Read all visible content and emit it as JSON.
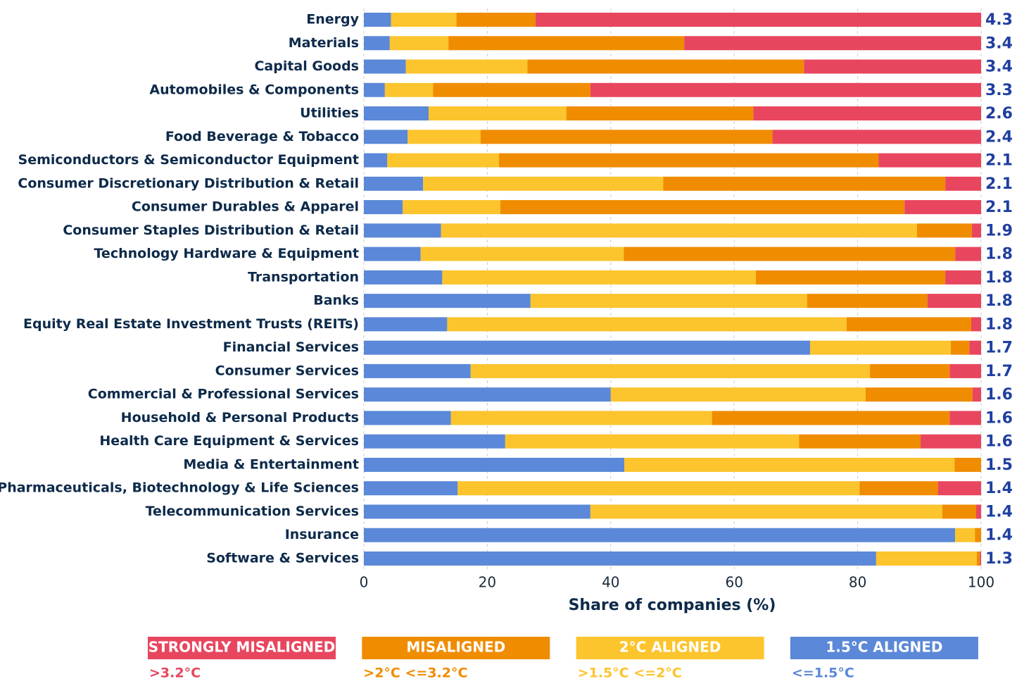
{
  "chart_data": {
    "type": "stacked-barh",
    "x_label": "Share of companies (%)",
    "categories": [
      "Energy",
      "Materials",
      "Capital Goods",
      "Automobiles & Components",
      "Utilities",
      "Food Beverage & Tobacco",
      "Semiconductors & Semiconductor Equipment",
      "Consumer Discretionary Distribution & Retail",
      "Consumer Durables & Apparel",
      "Consumer Staples Distribution & Retail",
      "Technology Hardware & Equipment",
      "Transportation",
      "Banks",
      "Equity Real Estate Investment Trusts (REITs)",
      "Financial Services",
      "Consumer Services",
      "Commercial & Professional Services",
      "Household & Personal Products",
      "Health Care Equipment & Services",
      "Media & Entertainment",
      "Pharmaceuticals, Biotechnology & Life Sciences",
      "Telecommunication Services",
      "Insurance",
      "Software & Services"
    ],
    "scores": [
      4.3,
      3.4,
      3.4,
      3.3,
      2.6,
      2.4,
      2.1,
      2.1,
      2.1,
      1.9,
      1.8,
      1.8,
      1.8,
      1.8,
      1.7,
      1.7,
      1.6,
      1.6,
      1.6,
      1.5,
      1.4,
      1.4,
      1.4,
      1.3
    ],
    "series": [
      {
        "name": "1.5°C ALIGNED",
        "description": "<=1.5°C",
        "color": "#5b88d8",
        "values": [
          4.4,
          4.2,
          6.8,
          3.4,
          10.5,
          7.1,
          3.8,
          9.6,
          6.3,
          12.5,
          9.2,
          12.7,
          27.0,
          13.5,
          72.3,
          17.3,
          40.0,
          14.1,
          22.9,
          42.2,
          15.2,
          36.7,
          95.8,
          83.0
        ]
      },
      {
        "name": "2°C ALIGNED",
        "description": ">1.5°C <=2°C",
        "color": "#fcc42d",
        "values": [
          10.6,
          9.5,
          19.7,
          7.8,
          22.3,
          11.8,
          18.1,
          38.9,
          15.8,
          77.1,
          32.9,
          50.8,
          44.8,
          64.7,
          22.8,
          64.7,
          41.3,
          42.3,
          47.6,
          53.5,
          65.1,
          57.0,
          3.2,
          16.3
        ]
      },
      {
        "name": "MISALIGNED",
        "description": ">2°C <=3.2°C",
        "color": "#f08c00",
        "values": [
          12.8,
          38.2,
          44.8,
          25.5,
          30.3,
          47.3,
          61.5,
          45.7,
          65.5,
          8.9,
          53.7,
          30.7,
          19.5,
          20.2,
          3.0,
          12.9,
          17.3,
          38.5,
          19.7,
          4.3,
          12.7,
          5.5,
          1.0,
          0.5
        ]
      },
      {
        "name": "STRONGLY MISALIGNED",
        "description": ">3.2°C",
        "color": "#e8465f",
        "values": [
          72.2,
          48.1,
          28.7,
          63.3,
          36.9,
          33.8,
          16.6,
          5.8,
          12.4,
          1.5,
          4.2,
          5.8,
          8.7,
          1.6,
          1.9,
          5.1,
          1.4,
          5.1,
          9.8,
          0,
          7.0,
          0.8,
          0,
          0.2
        ]
      }
    ],
    "xlim": [
      0,
      100
    ],
    "xticks": [
      0,
      20,
      40,
      60,
      80,
      100
    ],
    "grid": true
  }
}
